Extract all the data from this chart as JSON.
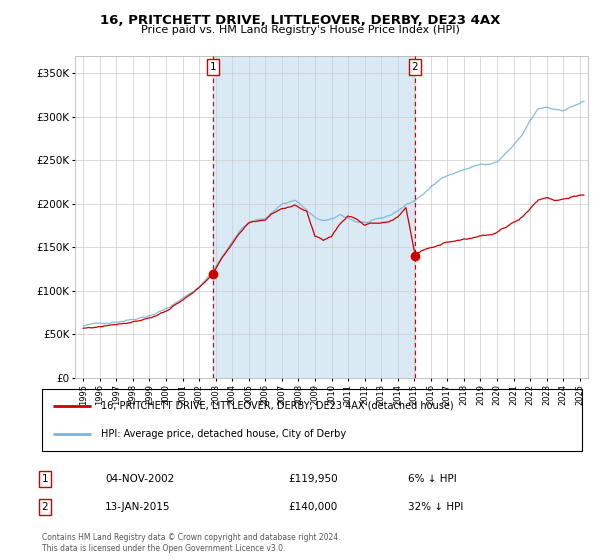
{
  "title": "16, PRITCHETT DRIVE, LITTLEOVER, DERBY, DE23 4AX",
  "subtitle": "Price paid vs. HM Land Registry's House Price Index (HPI)",
  "legend_line1": "16, PRITCHETT DRIVE, LITTLEOVER, DERBY, DE23 4AX (detached house)",
  "legend_line2": "HPI: Average price, detached house, City of Derby",
  "sale1_date": "04-NOV-2002",
  "sale1_price": "£119,950",
  "sale1_hpi": "6% ↓ HPI",
  "sale2_date": "13-JAN-2015",
  "sale2_price": "£140,000",
  "sale2_hpi": "32% ↓ HPI",
  "footer": "Contains HM Land Registry data © Crown copyright and database right 2024.\nThis data is licensed under the Open Government Licence v3.0.",
  "hpi_color": "#7ab4d8",
  "property_color": "#cc0000",
  "shade_color": "#daeaf5",
  "sale1_x": 2002.84,
  "sale1_y": 119950,
  "sale2_x": 2015.04,
  "sale2_y": 140000,
  "ylim": [
    0,
    370000
  ],
  "xlim": [
    1994.5,
    2025.5
  ]
}
